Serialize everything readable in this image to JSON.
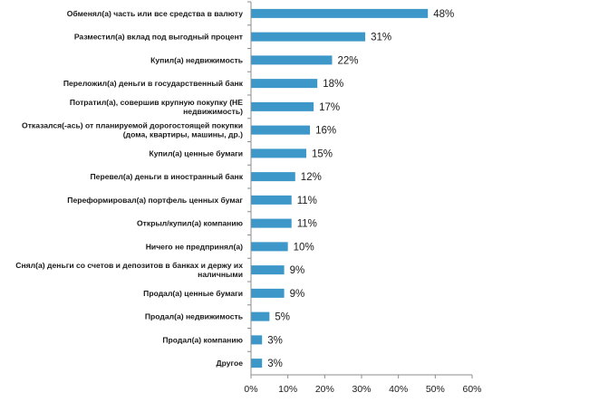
{
  "chart_data": {
    "type": "bar",
    "orientation": "horizontal",
    "title": "",
    "xlabel": "",
    "ylabel": "",
    "xlim": [
      0,
      60
    ],
    "xticks": [
      0,
      10,
      20,
      30,
      40,
      50,
      60
    ],
    "tick_labels": [
      "0%",
      "10%",
      "20%",
      "30%",
      "40%",
      "50%",
      "60%"
    ],
    "grid": false,
    "bar_color": "#3d97c9",
    "categories": [
      [
        "Обменял(а) часть или все средства в валюту"
      ],
      [
        "Разместил(а) вклад под выгодный процент"
      ],
      [
        "Купил(а) недвижимость"
      ],
      [
        "Переложил(а) деньги в государственный банк"
      ],
      [
        "Потратил(а), совершив крупную покупку (НЕ",
        "недвижимость)"
      ],
      [
        "Отказался(-ась) от планируемой дорогостоящей покупки",
        "(дома, квартиры, машины, др.)"
      ],
      [
        "Купил(а) ценные бумаги"
      ],
      [
        "Перевел(а) деньги в иностранный банк"
      ],
      [
        "Переформировал(а) портфель ценных бумаг"
      ],
      [
        "Открыл/купил(а) компанию"
      ],
      [
        "Ничего не предпринял(а)"
      ],
      [
        "Снял(а) деньги со счетов и депозитов в банках и держу их",
        "наличными"
      ],
      [
        "Продал(а) ценные бумаги"
      ],
      [
        "Продал(а) недвижимость"
      ],
      [
        "Продал(а) компанию"
      ],
      [
        "Другое"
      ]
    ],
    "values": [
      48,
      31,
      22,
      18,
      17,
      16,
      15,
      12,
      11,
      11,
      10,
      9,
      9,
      5,
      3,
      3
    ],
    "value_labels": [
      "48%",
      "31%",
      "22%",
      "18%",
      "17%",
      "16%",
      "15%",
      "12%",
      "11%",
      "11%",
      "10%",
      "9%",
      "9%",
      "5%",
      "3%",
      "3%"
    ]
  }
}
